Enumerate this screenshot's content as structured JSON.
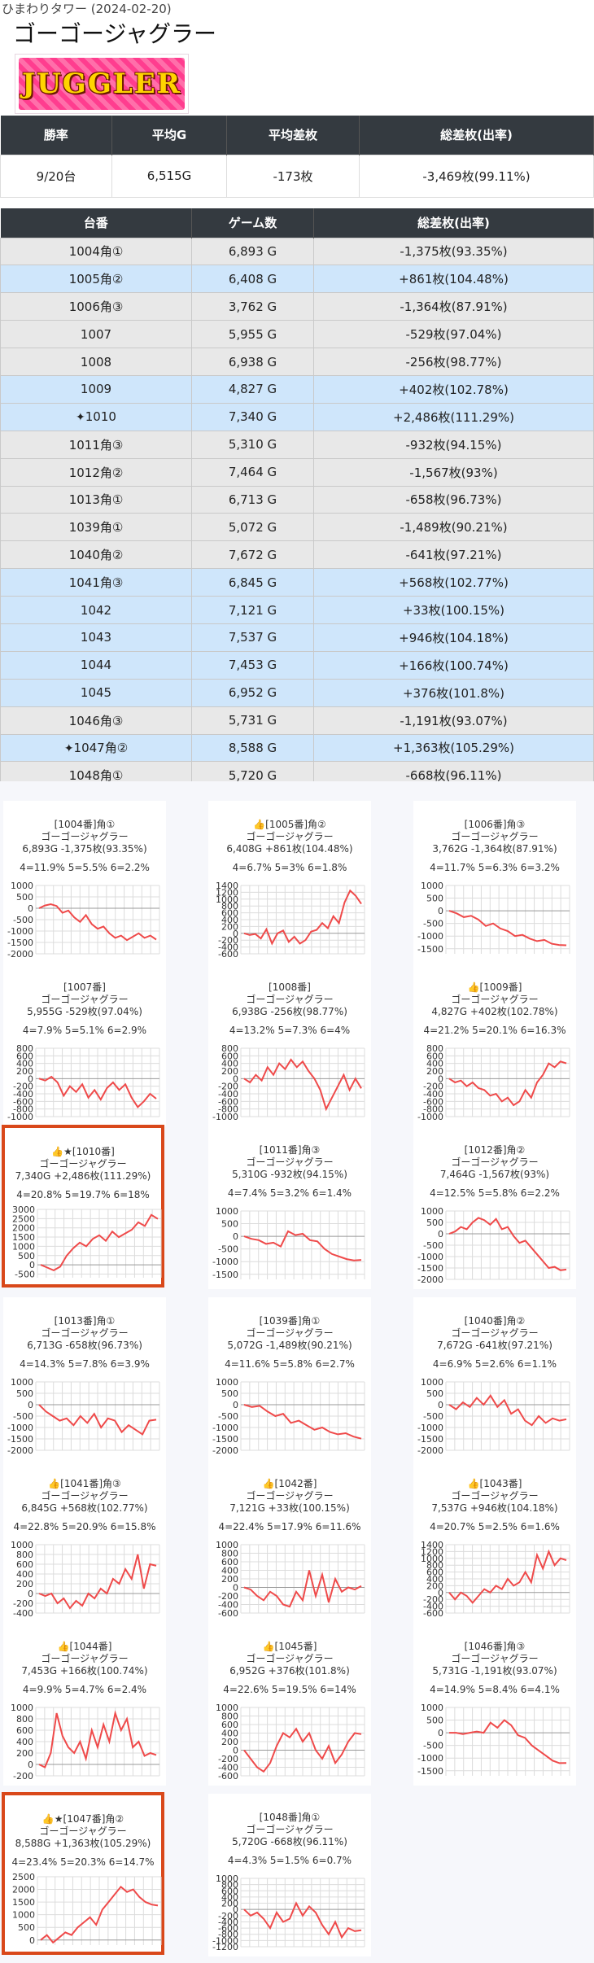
{
  "header": {
    "subtitle": "ひまわりタワー (2024-02-20)",
    "title": "ゴーゴージャグラー",
    "logo_text": "JUGGLER"
  },
  "summary": {
    "headers": [
      "勝率",
      "平均G",
      "平均差枚",
      "総差枚(出率)"
    ],
    "values": [
      "9/20台",
      "6,515G",
      "-173枚",
      "-3,469枚(99.11%)"
    ]
  },
  "machines": {
    "headers": [
      "台番",
      "ゲーム数",
      "総差枚(出率)"
    ],
    "rows": [
      {
        "id": "1004角①",
        "games": "6,893 G",
        "diff": "-1,375枚(93.35%)",
        "state": "neg",
        "star": false
      },
      {
        "id": "1005角②",
        "games": "6,408 G",
        "diff": "+861枚(104.48%)",
        "state": "pos",
        "star": false
      },
      {
        "id": "1006角③",
        "games": "3,762 G",
        "diff": "-1,364枚(87.91%)",
        "state": "neg",
        "star": false
      },
      {
        "id": "1007",
        "games": "5,955 G",
        "diff": "-529枚(97.04%)",
        "state": "neg",
        "star": false
      },
      {
        "id": "1008",
        "games": "6,938 G",
        "diff": "-256枚(98.77%)",
        "state": "neg",
        "star": false
      },
      {
        "id": "1009",
        "games": "4,827 G",
        "diff": "+402枚(102.78%)",
        "state": "pos",
        "star": false
      },
      {
        "id": "1010",
        "games": "7,340 G",
        "diff": "+2,486枚(111.29%)",
        "state": "pos",
        "star": true
      },
      {
        "id": "1011角③",
        "games": "5,310 G",
        "diff": "-932枚(94.15%)",
        "state": "neg",
        "star": false
      },
      {
        "id": "1012角②",
        "games": "7,464 G",
        "diff": "-1,567枚(93%)",
        "state": "neg",
        "star": false
      },
      {
        "id": "1013角①",
        "games": "6,713 G",
        "diff": "-658枚(96.73%)",
        "state": "neg",
        "star": false
      },
      {
        "id": "1039角①",
        "games": "5,072 G",
        "diff": "-1,489枚(90.21%)",
        "state": "neg",
        "star": false
      },
      {
        "id": "1040角②",
        "games": "7,672 G",
        "diff": "-641枚(97.21%)",
        "state": "neg",
        "star": false
      },
      {
        "id": "1041角③",
        "games": "6,845 G",
        "diff": "+568枚(102.77%)",
        "state": "pos",
        "star": false
      },
      {
        "id": "1042",
        "games": "7,121 G",
        "diff": "+33枚(100.15%)",
        "state": "pos",
        "star": false
      },
      {
        "id": "1043",
        "games": "7,537 G",
        "diff": "+946枚(104.18%)",
        "state": "pos",
        "star": false
      },
      {
        "id": "1044",
        "games": "7,453 G",
        "diff": "+166枚(100.74%)",
        "state": "pos",
        "star": false
      },
      {
        "id": "1045",
        "games": "6,952 G",
        "diff": "+376枚(101.8%)",
        "state": "pos",
        "star": false
      },
      {
        "id": "1046角③",
        "games": "5,731 G",
        "diff": "-1,191枚(93.07%)",
        "state": "neg",
        "star": false
      },
      {
        "id": "1047角②",
        "games": "8,588 G",
        "diff": "+1,363枚(105.29%)",
        "state": "pos",
        "star": true
      },
      {
        "id": "1048角①",
        "games": "5,720 G",
        "diff": "-668枚(96.11%)",
        "state": "neg",
        "star": false
      }
    ]
  },
  "cards": [
    {
      "label": "[1004番]角①",
      "name": "ゴーゴージャグラー",
      "stat": "6,893G -1,375枚(93.35%)",
      "probs": "4=11.9% 5=5.5% 6=2.2%",
      "thumb": false,
      "star": false,
      "ticks": [
        1000,
        500,
        0,
        -500,
        -1000,
        -1500,
        -2000
      ],
      "ymin": -2000,
      "ymax": 1000,
      "values": [
        0,
        120,
        180,
        100,
        -200,
        -100,
        -400,
        -600,
        -300,
        -700,
        -900,
        -800,
        -1100,
        -1300,
        -1200,
        -1400,
        -1250,
        -1100,
        -1300,
        -1200,
        -1375
      ]
    },
    {
      "label": "[1005番]角②",
      "name": "ゴーゴージャグラー",
      "stat": "6,408G +861枚(104.48%)",
      "probs": "4=6.7% 5=3% 6=1.8%",
      "thumb": true,
      "star": false,
      "ticks": [
        1400,
        1200,
        1000,
        800,
        600,
        400,
        200,
        0,
        -200,
        -400,
        -600
      ],
      "ymin": -600,
      "ymax": 1400,
      "values": [
        0,
        -50,
        -20,
        -150,
        120,
        -300,
        0,
        80,
        -250,
        -100,
        -300,
        -200,
        50,
        100,
        300,
        150,
        500,
        300,
        900,
        1250,
        1100,
        861
      ]
    },
    {
      "label": "[1006番]角③",
      "name": "ゴーゴージャグラー",
      "stat": "3,762G -1,364枚(87.91%)",
      "probs": "4=11.7% 5=6.3% 6=3.2%",
      "thumb": false,
      "star": false,
      "ticks": [
        1000,
        500,
        0,
        -500,
        -1000,
        -1500
      ],
      "ymin": -1700,
      "ymax": 1000,
      "values": [
        0,
        -100,
        -250,
        -200,
        -350,
        -600,
        -500,
        -700,
        -800,
        -1000,
        -950,
        -1100,
        -1200,
        -1150,
        -1300,
        -1350,
        -1364
      ]
    },
    {
      "label": "[1007番]",
      "name": "ゴーゴージャグラー",
      "stat": "5,955G -529枚(97.04%)",
      "probs": "4=7.9% 5=5.1% 6=2.9%",
      "thumb": false,
      "star": false,
      "ticks": [
        800,
        600,
        400,
        200,
        0,
        -200,
        -400,
        -600,
        -800,
        -1000
      ],
      "ymin": -1000,
      "ymax": 800,
      "values": [
        0,
        -50,
        50,
        -100,
        -450,
        -200,
        -350,
        -150,
        -500,
        -300,
        -550,
        -250,
        -100,
        -300,
        -150,
        -500,
        -750,
        -600,
        -400,
        -529
      ]
    },
    {
      "label": "[1008番]",
      "name": "ゴーゴージャグラー",
      "stat": "6,938G -256枚(98.77%)",
      "probs": "4=13.2% 5=7.3% 6=4%",
      "thumb": false,
      "star": false,
      "ticks": [
        800,
        600,
        400,
        200,
        0,
        -200,
        -400,
        -600,
        -800,
        -1000
      ],
      "ymin": -1000,
      "ymax": 800,
      "values": [
        0,
        -100,
        100,
        -50,
        300,
        100,
        400,
        250,
        500,
        300,
        450,
        200,
        0,
        -300,
        -800,
        -500,
        -200,
        100,
        -300,
        0,
        -256
      ]
    },
    {
      "label": "[1009番]",
      "name": "ゴーゴージャグラー",
      "stat": "4,827G +402枚(102.78%)",
      "probs": "4=21.2% 5=20.1% 6=16.3%",
      "thumb": true,
      "star": false,
      "ticks": [
        800,
        600,
        400,
        200,
        0,
        -200,
        -400,
        -600,
        -800,
        -1000
      ],
      "ymin": -1000,
      "ymax": 800,
      "values": [
        0,
        -100,
        -50,
        -200,
        -100,
        -250,
        -300,
        -450,
        -400,
        -600,
        -500,
        -700,
        -600,
        -300,
        -500,
        -100,
        100,
        400,
        300,
        450,
        402
      ]
    },
    {
      "label": "[1010番]",
      "name": "ゴーゴージャグラー",
      "stat": "7,340G +2,486枚(111.29%)",
      "probs": "4=20.8% 5=19.7% 6=18%",
      "thumb": true,
      "star": true,
      "ticks": [
        3000,
        2500,
        2000,
        1500,
        1000,
        500,
        0,
        -500
      ],
      "ymin": -700,
      "ymax": 3000,
      "values": [
        0,
        -150,
        -300,
        -100,
        500,
        900,
        1200,
        1000,
        1400,
        1600,
        1300,
        1800,
        1500,
        1700,
        1900,
        2300,
        2100,
        2700,
        2486
      ]
    },
    {
      "label": "[1011番]角③",
      "name": "ゴーゴージャグラー",
      "stat": "5,310G -932枚(94.15%)",
      "probs": "4=7.4% 5=3.2% 6=1.4%",
      "thumb": false,
      "star": false,
      "ticks": [
        1000,
        500,
        0,
        -500,
        -1000,
        -1500
      ],
      "ymin": -1700,
      "ymax": 1000,
      "values": [
        0,
        -100,
        -150,
        -300,
        -250,
        -400,
        200,
        50,
        100,
        -150,
        -200,
        -500,
        -700,
        -800,
        -900,
        -950,
        -932
      ]
    },
    {
      "label": "[1012番]角②",
      "name": "ゴーゴージャグラー",
      "stat": "7,464G -1,567枚(93%)",
      "probs": "4=12.5% 5=5.8% 6=2.2%",
      "thumb": false,
      "star": false,
      "ticks": [
        1000,
        500,
        0,
        -500,
        -1000,
        -1500,
        -2000
      ],
      "ymin": -2000,
      "ymax": 1000,
      "values": [
        0,
        100,
        300,
        200,
        500,
        700,
        600,
        400,
        650,
        200,
        300,
        -100,
        -400,
        -300,
        -600,
        -900,
        -1200,
        -1500,
        -1450,
        -1600,
        -1567
      ]
    },
    {
      "label": "[1013番]角①",
      "name": "ゴーゴージャグラー",
      "stat": "6,713G -658枚(96.73%)",
      "probs": "4=14.3% 5=7.8% 6=3.9%",
      "thumb": false,
      "star": false,
      "ticks": [
        1000,
        500,
        0,
        -500,
        -1000,
        -1500,
        -2000
      ],
      "ymin": -2000,
      "ymax": 1000,
      "values": [
        0,
        -300,
        -500,
        -700,
        -600,
        -900,
        -500,
        -800,
        -400,
        -1000,
        -600,
        -700,
        -1200,
        -900,
        -1100,
        -1300,
        -700,
        -658
      ]
    },
    {
      "label": "[1039番]角①",
      "name": "ゴーゴージャグラー",
      "stat": "5,072G -1,489枚(90.21%)",
      "probs": "4=11.6% 5=5.8% 6=2.7%",
      "thumb": false,
      "star": false,
      "ticks": [
        1000,
        500,
        0,
        -500,
        -1000,
        -1500,
        -2000
      ],
      "ymin": -2000,
      "ymax": 1000,
      "values": [
        0,
        -100,
        -50,
        -300,
        -500,
        -400,
        -800,
        -700,
        -900,
        -1100,
        -1000,
        -1200,
        -1300,
        -1250,
        -1400,
        -1489
      ]
    },
    {
      "label": "[1040番]角②",
      "name": "ゴーゴージャグラー",
      "stat": "7,672G -641枚(97.21%)",
      "probs": "4=6.9% 5=2.6% 6=1.1%",
      "thumb": false,
      "star": false,
      "ticks": [
        1000,
        500,
        0,
        -500,
        -1000,
        -1500,
        -2000
      ],
      "ymin": -2000,
      "ymax": 1000,
      "values": [
        0,
        -200,
        100,
        -100,
        300,
        0,
        400,
        -100,
        200,
        -400,
        -200,
        -700,
        -900,
        -500,
        -800,
        -600,
        -700,
        -641
      ]
    },
    {
      "label": "[1041番]角③",
      "name": "ゴーゴージャグラー",
      "stat": "6,845G +568枚(102.77%)",
      "probs": "4=22.8% 5=20.9% 6=15.8%",
      "thumb": true,
      "star": false,
      "ticks": [
        1000,
        800,
        600,
        400,
        200,
        0,
        -200,
        -400
      ],
      "ymin": -400,
      "ymax": 1000,
      "values": [
        0,
        -50,
        0,
        -200,
        -100,
        -300,
        -150,
        -250,
        0,
        -100,
        100,
        0,
        300,
        200,
        500,
        300,
        800,
        100,
        600,
        568
      ]
    },
    {
      "label": "[1042番]",
      "name": "ゴーゴージャグラー",
      "stat": "7,121G +33枚(100.15%)",
      "probs": "4=22.4% 5=17.9% 6=11.6%",
      "thumb": true,
      "star": false,
      "ticks": [
        1000,
        800,
        600,
        400,
        200,
        0,
        -200,
        -400,
        -600
      ],
      "ymin": -600,
      "ymax": 1000,
      "values": [
        0,
        -50,
        -200,
        -300,
        -100,
        -200,
        -400,
        -450,
        -100,
        -300,
        400,
        -200,
        300,
        -350,
        200,
        -100,
        0,
        -50,
        33
      ]
    },
    {
      "label": "[1043番]",
      "name": "ゴーゴージャグラー",
      "stat": "7,537G +946枚(104.18%)",
      "probs": "4=20.7% 5=2.5% 6=1.6%",
      "thumb": true,
      "star": false,
      "ticks": [
        1400,
        1200,
        1000,
        800,
        600,
        400,
        200,
        0,
        -200,
        -400,
        -600
      ],
      "ymin": -600,
      "ymax": 1400,
      "values": [
        0,
        -200,
        0,
        -100,
        -300,
        -100,
        100,
        0,
        200,
        100,
        400,
        200,
        300,
        600,
        300,
        1100,
        700,
        1200,
        800,
        1000,
        946
      ]
    },
    {
      "label": "[1044番]",
      "name": "ゴーゴージャグラー",
      "stat": "7,453G +166枚(100.74%)",
      "probs": "4=9.9% 5=4.7% 6=2.4%",
      "thumb": true,
      "star": false,
      "ticks": [
        1000,
        800,
        600,
        400,
        200,
        0,
        -200
      ],
      "ymin": -200,
      "ymax": 1000,
      "values": [
        0,
        -50,
        200,
        900,
        500,
        300,
        200,
        400,
        100,
        600,
        300,
        700,
        400,
        900,
        600,
        800,
        300,
        400,
        150,
        200,
        166
      ]
    },
    {
      "label": "[1045番]",
      "name": "ゴーゴージャグラー",
      "stat": "6,952G +376枚(101.8%)",
      "probs": "4=22.6% 5=19.5% 6=14%",
      "thumb": true,
      "star": false,
      "ticks": [
        1000,
        800,
        600,
        400,
        200,
        0,
        -200,
        -400,
        -600
      ],
      "ymin": -600,
      "ymax": 1000,
      "values": [
        0,
        -200,
        -400,
        -500,
        -300,
        100,
        400,
        300,
        500,
        200,
        400,
        0,
        -200,
        100,
        -300,
        -100,
        200,
        400,
        376
      ]
    },
    {
      "label": "[1046番]角③",
      "name": "ゴーゴージャグラー",
      "stat": "5,731G -1,191枚(93.07%)",
      "probs": "4=14.9% 5=8.4% 6=4.1%",
      "thumb": false,
      "star": false,
      "ticks": [
        1000,
        500,
        0,
        -500,
        -1000,
        -1500
      ],
      "ymin": -1700,
      "ymax": 1000,
      "values": [
        0,
        0,
        -50,
        0,
        50,
        0,
        400,
        200,
        500,
        300,
        -100,
        -200,
        -500,
        -700,
        -900,
        -1100,
        -1200,
        -1191
      ]
    },
    {
      "label": "[1047番]角②",
      "name": "ゴーゴージャグラー",
      "stat": "8,588G +1,363枚(105.29%)",
      "probs": "4=23.4% 5=20.3% 6=14.7%",
      "thumb": true,
      "star": true,
      "ticks": [
        2500,
        2000,
        1500,
        1000,
        500,
        0
      ],
      "ymin": -200,
      "ymax": 2500,
      "values": [
        0,
        200,
        -100,
        100,
        300,
        200,
        500,
        700,
        900,
        600,
        1200,
        1500,
        1800,
        2100,
        1900,
        2000,
        1700,
        1500,
        1400,
        1363
      ]
    },
    {
      "label": "[1048番]角①",
      "name": "ゴーゴージャグラー",
      "stat": "5,720G -668枚(96.11%)",
      "probs": "4=4.3% 5=1.5% 6=0.7%",
      "thumb": false,
      "star": false,
      "ticks": [
        1000,
        800,
        600,
        400,
        200,
        0,
        -200,
        -400,
        -600,
        -800,
        -1000,
        -1200
      ],
      "ymin": -1200,
      "ymax": 1000,
      "values": [
        0,
        -200,
        -100,
        -300,
        -600,
        -100,
        -400,
        -300,
        200,
        -200,
        100,
        -100,
        -500,
        -800,
        -400,
        -900,
        -600,
        -700,
        -668
      ]
    }
  ],
  "colors": {
    "header_bg": "#343a40",
    "neg_row": "#e8e8e8",
    "pos_row": "#cfe6fb",
    "line": "#ef4a4a",
    "highlight": "#d9481a"
  }
}
